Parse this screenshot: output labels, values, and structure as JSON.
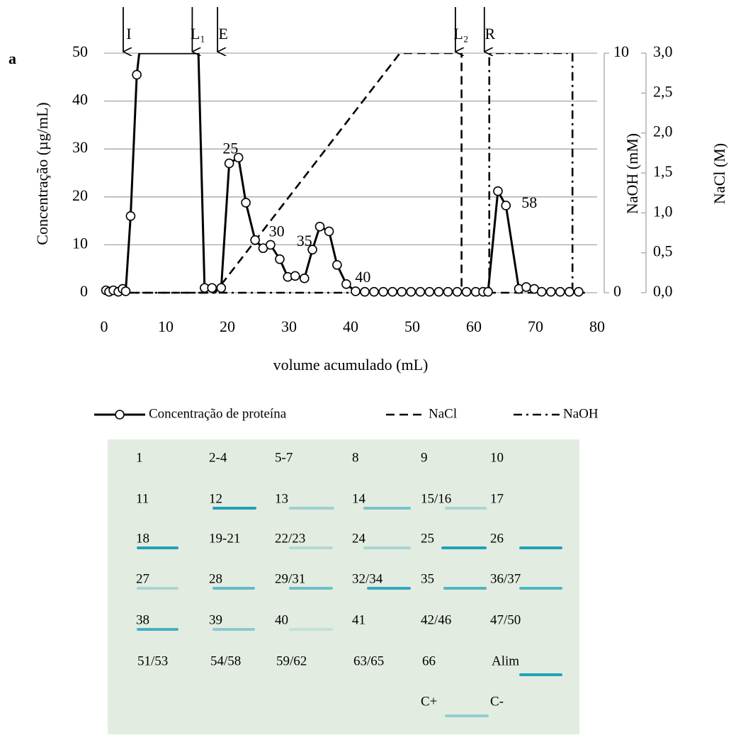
{
  "panel_label": "a",
  "chart_data": {
    "type": "line",
    "ylabel": "Concentração (µg/mL)",
    "xlabel": "volume acumulado (mL)",
    "y2label": "NaOH (mM)",
    "y3label": "NaCl (M)",
    "xlim": [
      0,
      80
    ],
    "xticks": [
      0,
      10,
      20,
      30,
      40,
      50,
      60,
      70,
      80
    ],
    "ylim": [
      0,
      50
    ],
    "yticks": [
      0,
      10,
      20,
      30,
      40,
      50
    ],
    "y2lim": [
      0,
      10
    ],
    "y2ticks": [
      0,
      10
    ],
    "y3lim": [
      0,
      3
    ],
    "y3ticks": [
      {
        "value": 0,
        "label": "0,0"
      },
      {
        "value": 0.5,
        "label": "0,5"
      },
      {
        "value": 1,
        "label": "1,0"
      },
      {
        "value": 1.5,
        "label": "1,5"
      },
      {
        "value": 2,
        "label": "2,0"
      },
      {
        "value": 2.5,
        "label": "2,5"
      },
      {
        "value": 3,
        "label": "3,0"
      }
    ],
    "grid": true,
    "series": [
      {
        "name": "Concentração de proteína",
        "color": "#000000",
        "marker": "circle",
        "dash": "solid",
        "x": [
          0.3,
          0.8,
          1.5,
          2.3,
          3,
          3.5,
          4.3,
          5.3,
          5.7,
          15.3,
          16.3,
          17.5,
          19,
          20.3,
          21.8,
          23,
          24.5,
          25.8,
          27,
          28.5,
          29.8,
          31,
          32.5,
          33.8,
          35,
          36.5,
          37.8,
          39.3,
          40.8,
          42.3,
          43.8,
          45.3,
          46.8,
          48.3,
          49.8,
          51.3,
          52.8,
          54.3,
          55.8,
          57.3,
          58.8,
          60.3,
          61.5,
          62.3,
          63.9,
          65.2,
          67.3,
          68.5,
          69.8,
          71,
          72.5,
          74,
          75.5,
          77
        ],
        "values": [
          0.5,
          0.2,
          0.5,
          0.2,
          0.8,
          0.3,
          16,
          45.5,
          50,
          50,
          1,
          1,
          1,
          27,
          28.2,
          18.8,
          11,
          9.3,
          10,
          7,
          3.3,
          3.5,
          3,
          9,
          13.8,
          12.8,
          5.8,
          1.8,
          0.3,
          0.2,
          0.2,
          0.2,
          0.2,
          0.2,
          0.2,
          0.2,
          0.2,
          0.2,
          0.2,
          0.2,
          0.2,
          0.2,
          0.2,
          0.2,
          21.2,
          18.2,
          0.8,
          1.2,
          0.8,
          0.2,
          0.2,
          0.2,
          0.2,
          0.2
        ]
      },
      {
        "name": "NaCl",
        "color": "#000000",
        "dash": "dashed",
        "axis": "y3",
        "x": [
          0,
          18,
          48,
          58,
          58,
          78
        ],
        "values": [
          0,
          0,
          3,
          3,
          0,
          0
        ]
      },
      {
        "name": "NaOH",
        "color": "#000000",
        "dash": "dashdot",
        "axis": "y2",
        "x": [
          0,
          62.5,
          62.5,
          76,
          76,
          78
        ],
        "values": [
          0,
          0,
          10,
          10,
          0,
          0
        ]
      }
    ],
    "annotations": [
      {
        "text": "25",
        "x": 20.5,
        "y": 29.8
      },
      {
        "text": "30",
        "x": 28,
        "y": 12.5
      },
      {
        "text": "35",
        "x": 32.5,
        "y": 10.5
      },
      {
        "text": "40",
        "x": 42,
        "y": 3
      },
      {
        "text": "58",
        "x": 69,
        "y": 18.5
      }
    ],
    "arrows": [
      {
        "label": "I",
        "x": 3.1
      },
      {
        "label": "L₁",
        "x": 14.3
      },
      {
        "label": "E",
        "x": 18.4
      },
      {
        "label": "L₂",
        "x": 57
      },
      {
        "label": "R",
        "x": 61.7
      }
    ]
  },
  "blot": {
    "rows": [
      [
        "1",
        "2-4",
        "5-7",
        "8",
        "9",
        "10"
      ],
      [
        "11",
        "12",
        "13",
        "14",
        "15/16",
        "17"
      ],
      [
        "18",
        "19-21",
        "22/23",
        "24",
        "25",
        "26"
      ],
      [
        "27",
        "28",
        "29/31",
        "32/34",
        "35",
        "36/37"
      ],
      [
        "38",
        "39",
        "40",
        "41",
        "42/46",
        "47/50"
      ],
      [
        "51/53",
        "54/58",
        "59/62",
        "63/65",
        "66",
        "Alim"
      ],
      [
        "C+",
        "C-"
      ]
    ]
  }
}
